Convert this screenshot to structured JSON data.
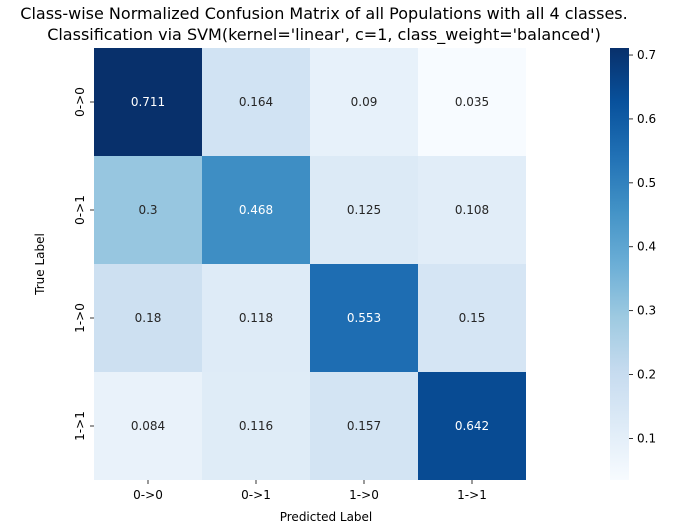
{
  "chart_data": {
    "type": "heatmap",
    "title_line1": "Class-wise Normalized Confusion Matrix of all Populations with all 4 classes.",
    "title_line2": "Classification via SVM(kernel='linear', c=1, class_weight='balanced')",
    "xlabel": "Predicted Label",
    "ylabel": "True Label",
    "x_categories": [
      "0->0",
      "0->1",
      "1->0",
      "1->1"
    ],
    "y_categories": [
      "0->0",
      "0->1",
      "1->0",
      "1->1"
    ],
    "values": [
      [
        0.711,
        0.164,
        0.09,
        0.035
      ],
      [
        0.3,
        0.468,
        0.125,
        0.108
      ],
      [
        0.18,
        0.118,
        0.553,
        0.15
      ],
      [
        0.084,
        0.116,
        0.157,
        0.642
      ]
    ],
    "value_labels": [
      [
        "0.711",
        "0.164",
        "0.09",
        "0.035"
      ],
      [
        "0.3",
        "0.468",
        "0.125",
        "0.108"
      ],
      [
        "0.18",
        "0.118",
        "0.553",
        "0.15"
      ],
      [
        "0.084",
        "0.116",
        "0.157",
        "0.642"
      ]
    ],
    "colormap": "Blues",
    "colorbar": {
      "min": 0.035,
      "max": 0.711,
      "ticks": [
        0.1,
        0.2,
        0.3,
        0.4,
        0.5,
        0.6,
        0.7
      ],
      "tick_labels": [
        "0.1",
        "0.2",
        "0.3",
        "0.4",
        "0.5",
        "0.6",
        "0.7"
      ]
    }
  }
}
